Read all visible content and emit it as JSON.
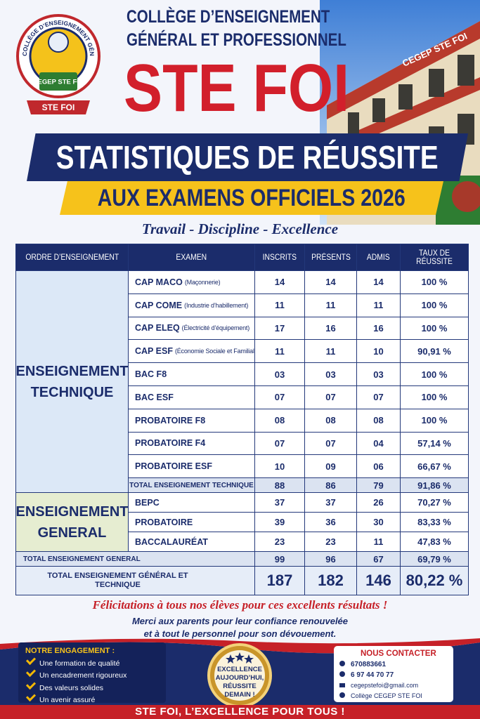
{
  "header": {
    "logo_ring": "COLLÈGE D’ENSEIGNEMENT GÉNÉRAL ET PROFESSIONNEL",
    "logo_center": "CEGEP STE FOI",
    "logo_banner": "STE FOI",
    "school_line1": "COLLÈGE D’ENSEIGNEMENT",
    "school_line2": "GÉNÉRAL ET PROFESSIONNEL",
    "school_name": "STE FOI",
    "building_sign": "CEGEP STE FOI"
  },
  "banner": {
    "title": "STATISTIQUES DE RÉUSSITE",
    "subtitle": "AUX EXAMENS OFFICIELS 2026",
    "motto": "Travail - Discipline - Excellence"
  },
  "table": {
    "columns": [
      "ORDRE D’ENSEIGNEMENT",
      "EXAMEN",
      "INSCRITS",
      "PRÉSENTS",
      "ADMIS",
      "TAUX DE RÉUSSITE"
    ],
    "sections": [
      {
        "label": "ENSEIGNEMENT TECHNIQUE",
        "rows": [
          {
            "exam": "CAP MACO",
            "note": "(Maçonnerie)",
            "cells": [
              "14",
              "14",
              "14",
              "100 %"
            ]
          },
          {
            "exam": "CAP COME",
            "note": "(Industrie d’habillement)",
            "cells": [
              "11",
              "11",
              "11",
              "100 %"
            ]
          },
          {
            "exam": "CAP ELEQ",
            "note": "(Électricité d’équipement)",
            "cells": [
              "17",
              "16",
              "16",
              "100 %"
            ]
          },
          {
            "exam": "CAP ESF",
            "note": "(Économie Sociale et Familiale)",
            "cells": [
              "11",
              "11",
              "10",
              "90,91 %"
            ]
          },
          {
            "exam": "BAC F8",
            "cells": [
              "03",
              "03",
              "03",
              "100 %"
            ]
          },
          {
            "exam": "BAC ESF",
            "cells": [
              "07",
              "07",
              "07",
              "100 %"
            ]
          },
          {
            "exam": "PROBATOIRE F8",
            "cells": [
              "08",
              "08",
              "08",
              "100 %"
            ]
          },
          {
            "exam": "PROBATOIRE F4",
            "cells": [
              "07",
              "07",
              "04",
              "57,14 %"
            ]
          },
          {
            "exam": "PROBATOIRE ESF",
            "cells": [
              "10",
              "09",
              "06",
              "66,67 %"
            ]
          }
        ],
        "total": {
          "label": "TOTAL ENSEIGNEMENT TECHNIQUE",
          "cells": [
            "88",
            "86",
            "79",
            "91,86 %"
          ]
        }
      },
      {
        "label": "ENSEIGNEMENT GENERAL",
        "rows": [
          {
            "exam": "BEPC",
            "cells": [
              "37",
              "37",
              "26",
              "70,27 %"
            ]
          },
          {
            "exam": "PROBATOIRE",
            "cells": [
              "39",
              "36",
              "30",
              "83,33 %"
            ]
          },
          {
            "exam": "BACCALAURÉAT",
            "cells": [
              "23",
              "23",
              "11",
              "47,83 %"
            ]
          }
        ],
        "total": {
          "label": "TOTAL ENSEIGNEMENT GENERAL",
          "cells": [
            "99",
            "96",
            "67",
            "69,79 %"
          ]
        }
      }
    ],
    "grand_total": {
      "label": "TOTAL ENSEIGNEMENT GÉNÉRAL ET TECHNIQUE",
      "cells": [
        "187",
        "182",
        "146",
        "80,22 %"
      ]
    }
  },
  "message": {
    "congrats": "Félicitations à tous nos élèves pour ces excellents résultats !",
    "thanks_line1": "Merci aux parents pour leur confiance renouvelée",
    "thanks_line2": "et à tout le personnel pour son dévouement."
  },
  "engagement": {
    "title": "NOTRE ENGAGEMENT :",
    "items": [
      "Une formation de qualité",
      "Un encadrement rigoureux",
      "Des valeurs solides",
      "Un avenir assuré"
    ]
  },
  "seal": {
    "text": "EXCELLENCE AUJOURD’HUI, RÉUSSITE DEMAIN !"
  },
  "contact": {
    "title": "NOUS CONTACTER",
    "items": [
      "670883661",
      "6 97 44 70 77",
      "cegepstefoi@gmail.com",
      "Collège CEGEP STE FOI"
    ]
  },
  "footer": {
    "slogan": "STE FOI, L’EXCELLENCE POUR TOUS !"
  }
}
